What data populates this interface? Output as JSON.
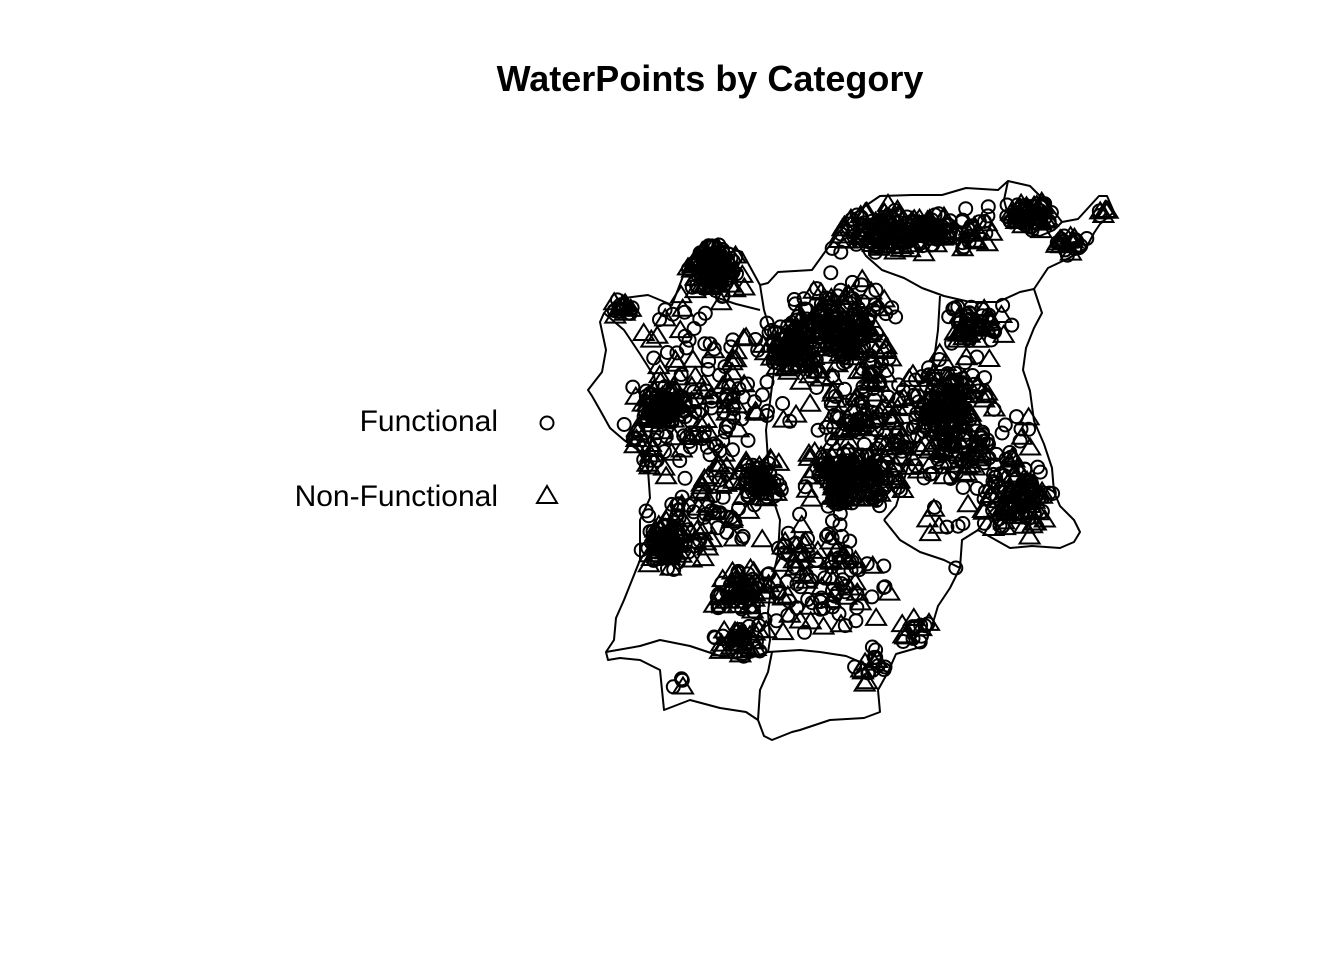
{
  "map": {
    "title": "WaterPoints by Category",
    "colors": {
      "ink": "#000000",
      "background": "#ffffff"
    },
    "legend": [
      {
        "label": "Functional",
        "symbol": "open-circle"
      },
      {
        "label": "Non-Functional",
        "symbol": "open-triangle"
      }
    ]
  }
}
